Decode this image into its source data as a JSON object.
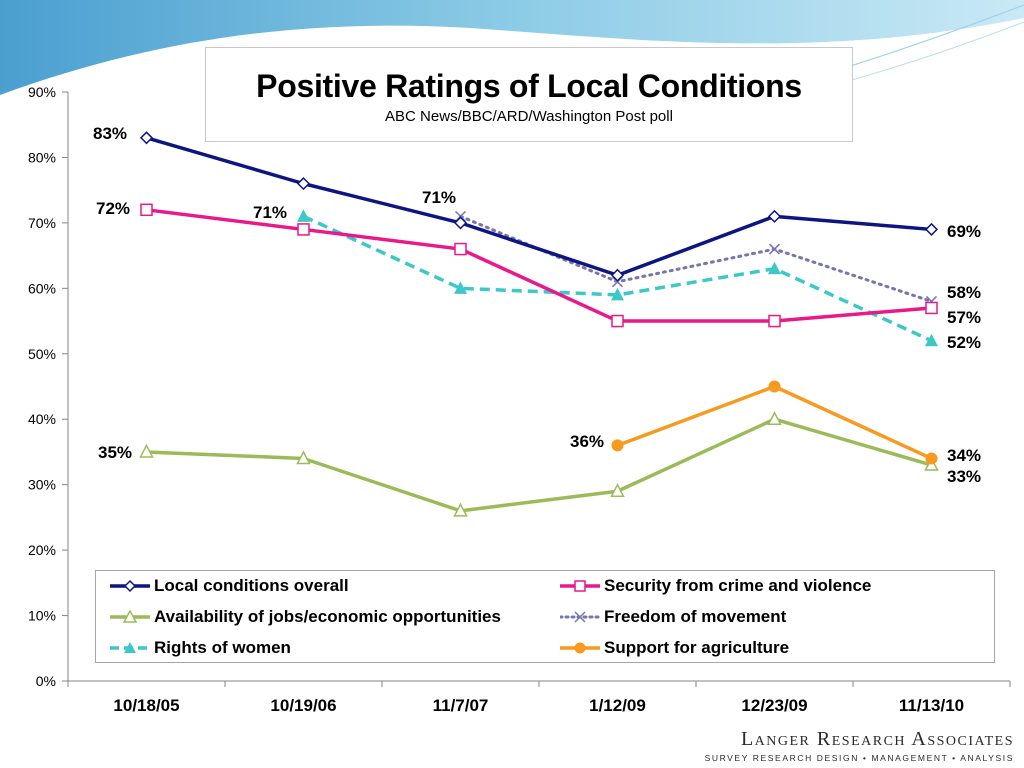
{
  "chart_data": {
    "type": "line",
    "title": "Positive Ratings of Local Conditions",
    "subtitle": "ABC News/BBC/ARD/Washington Post poll",
    "categories": [
      "10/18/05",
      "10/19/06",
      "11/7/07",
      "1/12/09",
      "12/23/09",
      "11/13/10"
    ],
    "ylim": [
      0,
      90
    ],
    "yticks": [
      0,
      10,
      20,
      30,
      40,
      50,
      60,
      70,
      80,
      90
    ],
    "ytick_labels": [
      "0%",
      "10%",
      "20%",
      "30%",
      "40%",
      "50%",
      "60%",
      "70%",
      "80%",
      "90%"
    ],
    "xlabel": "",
    "ylabel": "",
    "legend_position": "bottom",
    "series": [
      {
        "name": "Local conditions overall",
        "color": "#0d1580",
        "dash": "solid",
        "marker": "diamond",
        "values": [
          83,
          76,
          70,
          62,
          71,
          69
        ]
      },
      {
        "name": "Security from crime and violence",
        "color": "#e8198b",
        "dash": "solid",
        "marker": "square",
        "values": [
          72,
          69,
          66,
          55,
          55,
          57
        ]
      },
      {
        "name": "Availability of jobs/economic opportunities",
        "color": "#9bbb59",
        "dash": "solid",
        "marker": "triangle-open",
        "values": [
          35,
          34,
          26,
          29,
          40,
          33
        ]
      },
      {
        "name": "Freedom of movement",
        "color": "#7575b0",
        "dash": "dot",
        "marker": "x",
        "values": [
          null,
          null,
          71,
          61,
          66,
          58
        ]
      },
      {
        "name": "Rights of women",
        "color": "#3cc8c8",
        "dash": "dash",
        "marker": "triangle-filled",
        "values": [
          null,
          71,
          60,
          59,
          63,
          52
        ]
      },
      {
        "name": "Support for agriculture",
        "color": "#f79a1e",
        "dash": "solid",
        "marker": "circle",
        "values": [
          null,
          null,
          null,
          36,
          45,
          34
        ]
      }
    ],
    "data_labels": [
      "83%",
      "72%",
      "35%",
      "71%",
      "71%",
      "36%",
      "69%",
      "58%",
      "57%",
      "52%",
      "34%",
      "33%"
    ]
  },
  "logo": {
    "name": "Langer Research Associates",
    "tagline": "SURVEY RESEARCH DESIGN • MANAGEMENT • ANALYSIS"
  },
  "colors": {
    "axis": "#868686",
    "background_swoosh": "#6fb3d8"
  }
}
